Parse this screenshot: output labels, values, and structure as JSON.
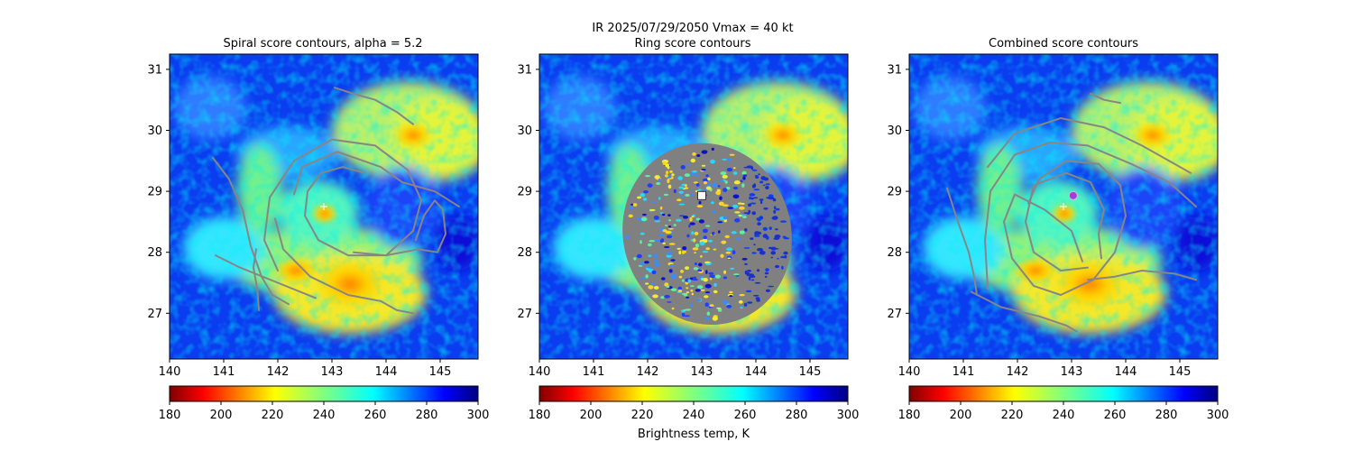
{
  "figure": {
    "suptitle": "IR  2025/07/29/2050    Vmax = 40 kt",
    "colorbar_label": "Brightness temp, K"
  },
  "chart_data": [
    {
      "type": "heatmap",
      "title": "Spiral score contours, alpha =  5.2",
      "xlim": [
        140,
        145.7
      ],
      "ylim": [
        26.25,
        31.25
      ],
      "xticks": [
        "140",
        "141",
        "142",
        "143",
        "144",
        "145"
      ],
      "yticks": [
        "27",
        "28",
        "29",
        "30",
        "31"
      ],
      "center_marker": {
        "lon": 142.85,
        "lat": 28.75
      },
      "contours": [
        [
          [
            140.8,
            29.55
          ],
          [
            141.1,
            29.2
          ],
          [
            141.35,
            28.7
          ],
          [
            141.5,
            28.1
          ],
          [
            141.7,
            27.6
          ],
          [
            141.9,
            27.3
          ],
          [
            142.2,
            27.15
          ]
        ],
        [
          [
            141.65,
            27.05
          ],
          [
            141.62,
            27.4
          ],
          [
            141.55,
            27.75
          ],
          [
            141.6,
            28.05
          ]
        ],
        [
          [
            143.05,
            30.7
          ],
          [
            143.4,
            30.6
          ],
          [
            143.8,
            30.5
          ],
          [
            144.2,
            30.3
          ],
          [
            144.5,
            30.1
          ]
        ],
        [
          [
            142.0,
            27.7
          ],
          [
            141.75,
            28.2
          ],
          [
            141.85,
            28.9
          ],
          [
            142.3,
            29.5
          ],
          [
            143.0,
            29.85
          ],
          [
            143.8,
            29.75
          ],
          [
            144.4,
            29.35
          ],
          [
            144.65,
            28.85
          ],
          [
            144.5,
            28.35
          ],
          [
            144.0,
            27.95
          ],
          [
            143.3,
            27.95
          ],
          [
            142.75,
            28.2
          ],
          [
            142.5,
            28.6
          ],
          [
            142.55,
            29.0
          ],
          [
            142.8,
            29.3
          ],
          [
            143.2,
            29.4
          ],
          [
            143.6,
            29.3
          ]
        ],
        [
          [
            142.3,
            28.95
          ],
          [
            142.45,
            29.4
          ],
          [
            143.1,
            29.65
          ],
          [
            143.9,
            29.4
          ],
          [
            144.3,
            29.15
          ],
          [
            144.9,
            29.0
          ],
          [
            145.35,
            28.75
          ]
        ],
        [
          [
            143.4,
            28.0
          ],
          [
            144.0,
            27.95
          ],
          [
            144.6,
            28.05
          ],
          [
            144.95,
            28.0
          ],
          [
            145.1,
            28.3
          ],
          [
            145.05,
            28.7
          ],
          [
            144.9,
            28.85
          ],
          [
            144.7,
            28.6
          ],
          [
            144.55,
            28.2
          ]
        ],
        [
          [
            141.95,
            28.55
          ],
          [
            142.1,
            28.05
          ],
          [
            142.6,
            27.6
          ],
          [
            143.3,
            27.3
          ],
          [
            143.9,
            27.2
          ],
          [
            144.2,
            27.05
          ],
          [
            144.5,
            27.0
          ]
        ],
        [
          [
            140.85,
            27.95
          ],
          [
            141.3,
            27.75
          ],
          [
            142.0,
            27.5
          ],
          [
            142.7,
            27.25
          ]
        ]
      ]
    },
    {
      "type": "heatmap",
      "title": "Ring score contours",
      "xlim": [
        140,
        145.7
      ],
      "ylim": [
        26.25,
        31.25
      ],
      "xticks": [
        "140",
        "141",
        "142",
        "143",
        "144",
        "145"
      ],
      "yticks": [
        "27",
        "28",
        "29",
        "30",
        "31"
      ],
      "center_marker": {
        "lon": 143.0,
        "lat": 28.93
      },
      "ring_region": {
        "center_lon": 143.1,
        "center_lat": 28.3,
        "radius_lon": 1.55,
        "radius_lat": 1.5
      }
    },
    {
      "type": "heatmap",
      "title": "Combined score contours",
      "xlim": [
        140,
        145.7
      ],
      "ylim": [
        26.25,
        31.25
      ],
      "xticks": [
        "140",
        "141",
        "142",
        "143",
        "144",
        "145"
      ],
      "yticks": [
        "27",
        "28",
        "29",
        "30",
        "31"
      ],
      "center_marker": {
        "lon": 142.85,
        "lat": 28.75
      },
      "best_center": {
        "lon": 143.03,
        "lat": 28.93
      },
      "contours": [
        [
          [
            140.7,
            29.05
          ],
          [
            140.9,
            28.5
          ],
          [
            141.1,
            28.0
          ],
          [
            141.2,
            27.6
          ],
          [
            141.25,
            27.3
          ]
        ],
        [
          [
            143.35,
            30.6
          ],
          [
            143.6,
            30.5
          ],
          [
            143.9,
            30.45
          ]
        ],
        [
          [
            143.55,
            27.9
          ],
          [
            143.5,
            28.3
          ],
          [
            143.6,
            28.7
          ],
          [
            143.35,
            29.15
          ],
          [
            142.9,
            29.3
          ],
          [
            142.3,
            29.1
          ],
          [
            142.15,
            28.5
          ],
          [
            142.3,
            28.0
          ],
          [
            142.8,
            27.7
          ],
          [
            143.3,
            27.75
          ]
        ],
        [
          [
            143.2,
            27.85
          ],
          [
            143.0,
            28.35
          ],
          [
            142.5,
            28.7
          ],
          [
            141.95,
            28.95
          ],
          [
            141.75,
            28.5
          ],
          [
            141.9,
            27.9
          ],
          [
            142.3,
            27.45
          ],
          [
            142.8,
            27.3
          ],
          [
            143.4,
            27.55
          ],
          [
            143.8,
            28.0
          ],
          [
            144.0,
            28.6
          ],
          [
            143.9,
            29.1
          ],
          [
            143.5,
            29.45
          ],
          [
            142.9,
            29.5
          ],
          [
            142.4,
            29.2
          ],
          [
            142.2,
            28.8
          ]
        ],
        [
          [
            141.45,
            27.4
          ],
          [
            141.4,
            28.2
          ],
          [
            141.5,
            29.0
          ],
          [
            141.95,
            29.6
          ],
          [
            142.6,
            29.8
          ],
          [
            143.3,
            29.75
          ],
          [
            144.1,
            29.45
          ],
          [
            144.8,
            29.15
          ],
          [
            145.3,
            28.75
          ]
        ],
        [
          [
            141.45,
            29.4
          ],
          [
            141.95,
            29.95
          ],
          [
            142.8,
            30.2
          ],
          [
            143.6,
            30.05
          ],
          [
            144.3,
            29.75
          ],
          [
            144.8,
            29.5
          ],
          [
            145.2,
            29.3
          ]
        ],
        [
          [
            141.15,
            27.35
          ],
          [
            141.7,
            27.1
          ],
          [
            142.4,
            26.95
          ],
          [
            142.9,
            26.8
          ],
          [
            143.1,
            26.7
          ]
        ],
        [
          [
            143.3,
            27.55
          ],
          [
            143.8,
            27.6
          ],
          [
            144.3,
            27.7
          ],
          [
            144.9,
            27.65
          ],
          [
            145.3,
            27.55
          ]
        ]
      ]
    }
  ],
  "colorbar": {
    "cmap": "jet_r",
    "vmin": 180,
    "vmax": 300,
    "ticks": [
      "180",
      "200",
      "220",
      "240",
      "260",
      "280",
      "300"
    ]
  },
  "colors": {
    "contour": "#868686",
    "ring": "#808080",
    "center_purple": "#a63fd0",
    "marker_white": "#ffffff"
  }
}
